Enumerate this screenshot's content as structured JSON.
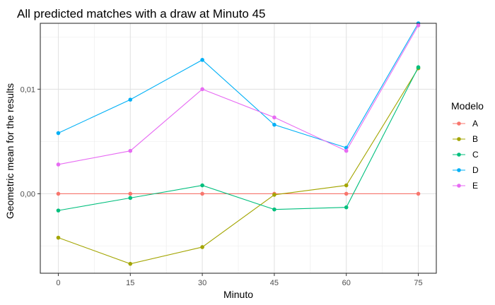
{
  "chart_data": {
    "type": "line",
    "title": "All predicted matches with a draw at Minuto 45",
    "xlabel": "Minuto",
    "ylabel": "Geometric mean for the results",
    "x": [
      0,
      15,
      30,
      45,
      60,
      75
    ],
    "x_ticks": [
      "0",
      "15",
      "30",
      "45",
      "60",
      "75"
    ],
    "xlim": [
      -3.75,
      78.75
    ],
    "ylim": [
      -0.0076,
      0.0163
    ],
    "y_ticks": [
      {
        "value": 0.0,
        "label": "0,00"
      },
      {
        "value": 0.01,
        "label": "0,01"
      }
    ],
    "grid": true,
    "legend": {
      "title": "Modelo",
      "placement": "right"
    },
    "series": [
      {
        "name": "A",
        "color": "#F8766D",
        "values": [
          0.0,
          0.0,
          0.0,
          0.0,
          0.0,
          0.0
        ]
      },
      {
        "name": "B",
        "color": "#A3A500",
        "values": [
          -0.0042,
          -0.0067,
          -0.0051,
          -0.0001,
          0.0008,
          0.012
        ]
      },
      {
        "name": "C",
        "color": "#00BF7D",
        "values": [
          -0.0016,
          -0.0004,
          0.0008,
          -0.0015,
          -0.0013,
          0.0121
        ]
      },
      {
        "name": "D",
        "color": "#00B0F6",
        "values": [
          0.0058,
          0.009,
          0.0128,
          0.0066,
          0.0044,
          0.0163
        ]
      },
      {
        "name": "E",
        "color": "#E76BF3",
        "values": [
          0.0028,
          0.0041,
          0.01,
          0.0073,
          0.0041,
          0.0161
        ]
      }
    ]
  }
}
